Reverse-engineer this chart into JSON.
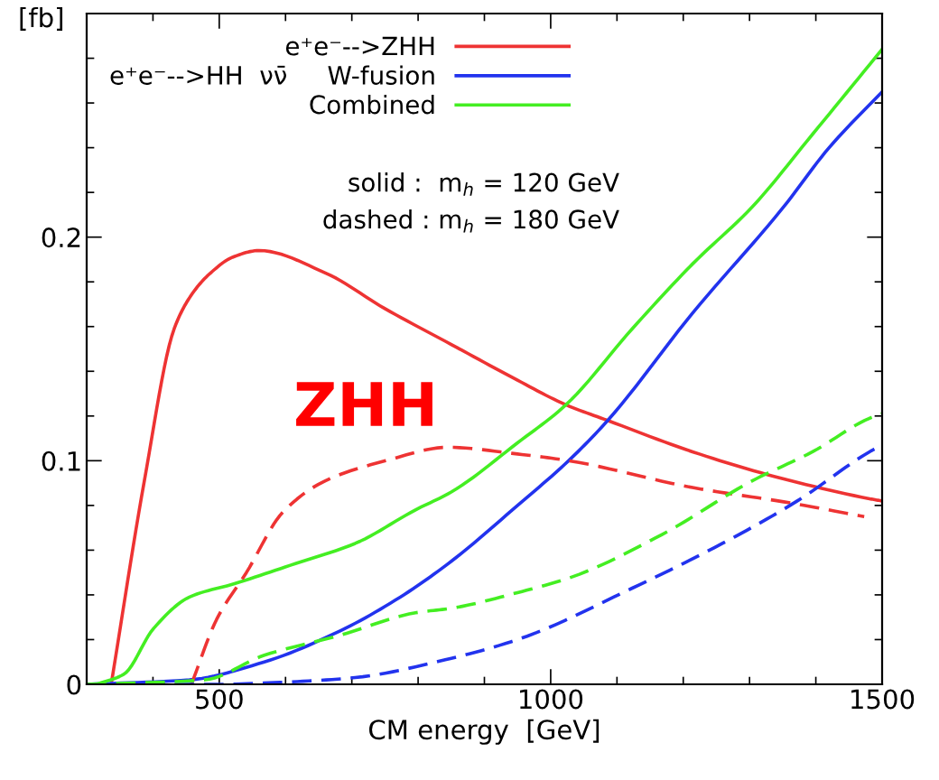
{
  "chart_data": {
    "type": "line",
    "xlabel": "CM energy  [GeV]",
    "ylabel": "[fb]",
    "xlim": [
      300,
      1500
    ],
    "ylim": [
      0,
      0.3
    ],
    "xticks": [
      {
        "value": 400,
        "label": null
      },
      500,
      {
        "value": 600,
        "label": null
      },
      {
        "value": 700,
        "label": null
      },
      {
        "value": 800,
        "label": null
      },
      {
        "value": 900,
        "label": null
      },
      1000,
      {
        "value": 1100,
        "label": null
      },
      {
        "value": 1200,
        "label": null
      },
      {
        "value": 1300,
        "label": null
      },
      {
        "value": 1400,
        "label": null
      },
      1500
    ],
    "yticks": [
      0,
      {
        "value": 0.02,
        "label": null
      },
      {
        "value": 0.04,
        "label": null
      },
      {
        "value": 0.06,
        "label": null
      },
      {
        "value": 0.08,
        "label": null
      },
      0.1,
      {
        "value": 0.12,
        "label": null
      },
      {
        "value": 0.14,
        "label": null
      },
      {
        "value": 0.16,
        "label": null
      },
      {
        "value": 0.18,
        "label": null
      },
      0.2,
      {
        "value": 0.22,
        "label": null
      },
      {
        "value": 0.24,
        "label": null
      },
      {
        "value": 0.26,
        "label": null
      },
      {
        "value": 0.28,
        "label": null
      }
    ],
    "grid": false,
    "legend": "top left",
    "series": [
      {
        "name": "e⁺e⁻-->ZHH",
        "color": "#ee3333",
        "line_style": "solid",
        "x": [
          337,
          387,
          432,
          460,
          487,
          520,
          560,
          660,
          750,
          850,
          950,
          1023,
          1086,
          1214,
          1337,
          1481,
          1500
        ],
        "values": [
          0,
          0.091,
          0.159,
          0.175,
          0.184,
          0.191,
          0.194,
          0.184,
          0.168,
          0.152,
          0.136,
          0.125,
          0.118,
          0.104,
          0.093,
          0.083,
          0.082
        ]
      },
      {
        "name": "e⁺e⁻-->HH  νν̄     W-fusion",
        "color": "#2233ee",
        "line_style": "solid",
        "x": [
          300,
          455,
          568,
          683,
          773,
          850,
          950,
          1027,
          1086,
          1214,
          1350,
          1420,
          1500
        ],
        "values": [
          0,
          0.002,
          0.01,
          0.024,
          0.039,
          0.055,
          0.08,
          0.1,
          0.118,
          0.166,
          0.213,
          0.24,
          0.265
        ]
      },
      {
        "name": "Combined",
        "color": "#44ee22",
        "line_style": "solid",
        "x": [
          315,
          356,
          401,
          455,
          523,
          615,
          705,
          796,
          850,
          950,
          1023,
          1123,
          1214,
          1304,
          1395,
          1500
        ],
        "values": [
          0,
          0.0045,
          0.025,
          0.039,
          0.045,
          0.054,
          0.063,
          0.078,
          0.086,
          0.108,
          0.125,
          0.159,
          0.188,
          0.2135,
          0.246,
          0.284
        ]
      },
      {
        "color": "#ee3333",
        "line_style": "dashed",
        "x": [
          458,
          496,
          541,
          596,
          660,
          751,
          845,
          950,
          1027,
          1214,
          1364,
          1473
        ],
        "values": [
          0,
          0.029,
          0.05,
          0.077,
          0.091,
          0.1,
          0.106,
          0.103,
          0.1,
          0.088,
          0.081,
          0.075
        ]
      },
      {
        "color": "#2233ee",
        "line_style": "dashed",
        "x": [
          300,
          500,
          600,
          705,
          841,
          950,
          1123,
          1259,
          1372,
          1481,
          1500
        ],
        "values": [
          0,
          0,
          0.001,
          0.003,
          0.011,
          0.02,
          0.043,
          0.063,
          0.082,
          0.104,
          0.107
        ]
      },
      {
        "color": "#44ee22",
        "line_style": "dashed",
        "x": [
          300,
          478,
          568,
          683,
          796,
          850,
          950,
          1032,
          1168,
          1304,
          1395,
          1481,
          1500
        ],
        "values": [
          0,
          0.002,
          0.013,
          0.022,
          0.032,
          0.034,
          0.041,
          0.048,
          0.067,
          0.091,
          0.104,
          0.119,
          0.121
        ]
      }
    ],
    "annotations": [
      "solid :  m$_{h}$ = 120 GeV",
      "dashed : m$_{h}$ = 180 GeV",
      "ZHH"
    ]
  }
}
